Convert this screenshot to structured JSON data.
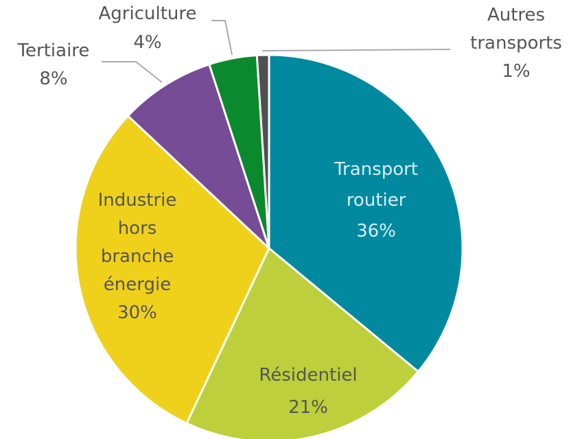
{
  "chart_data": {
    "type": "pie",
    "categories": [
      "Transport routier",
      "Résidentiel",
      "Industrie hors branche énergie",
      "Tertiaire",
      "Agriculture",
      "Autres transports"
    ],
    "values": [
      36,
      21,
      30,
      8,
      4,
      1
    ],
    "value_labels": [
      "36%",
      "21%",
      "30%",
      "8%",
      "4%",
      "1%"
    ],
    "colors": [
      "#00899f",
      "#bdcf3a",
      "#efd11b",
      "#774c97",
      "#0a8a2c",
      "#505050"
    ]
  }
}
